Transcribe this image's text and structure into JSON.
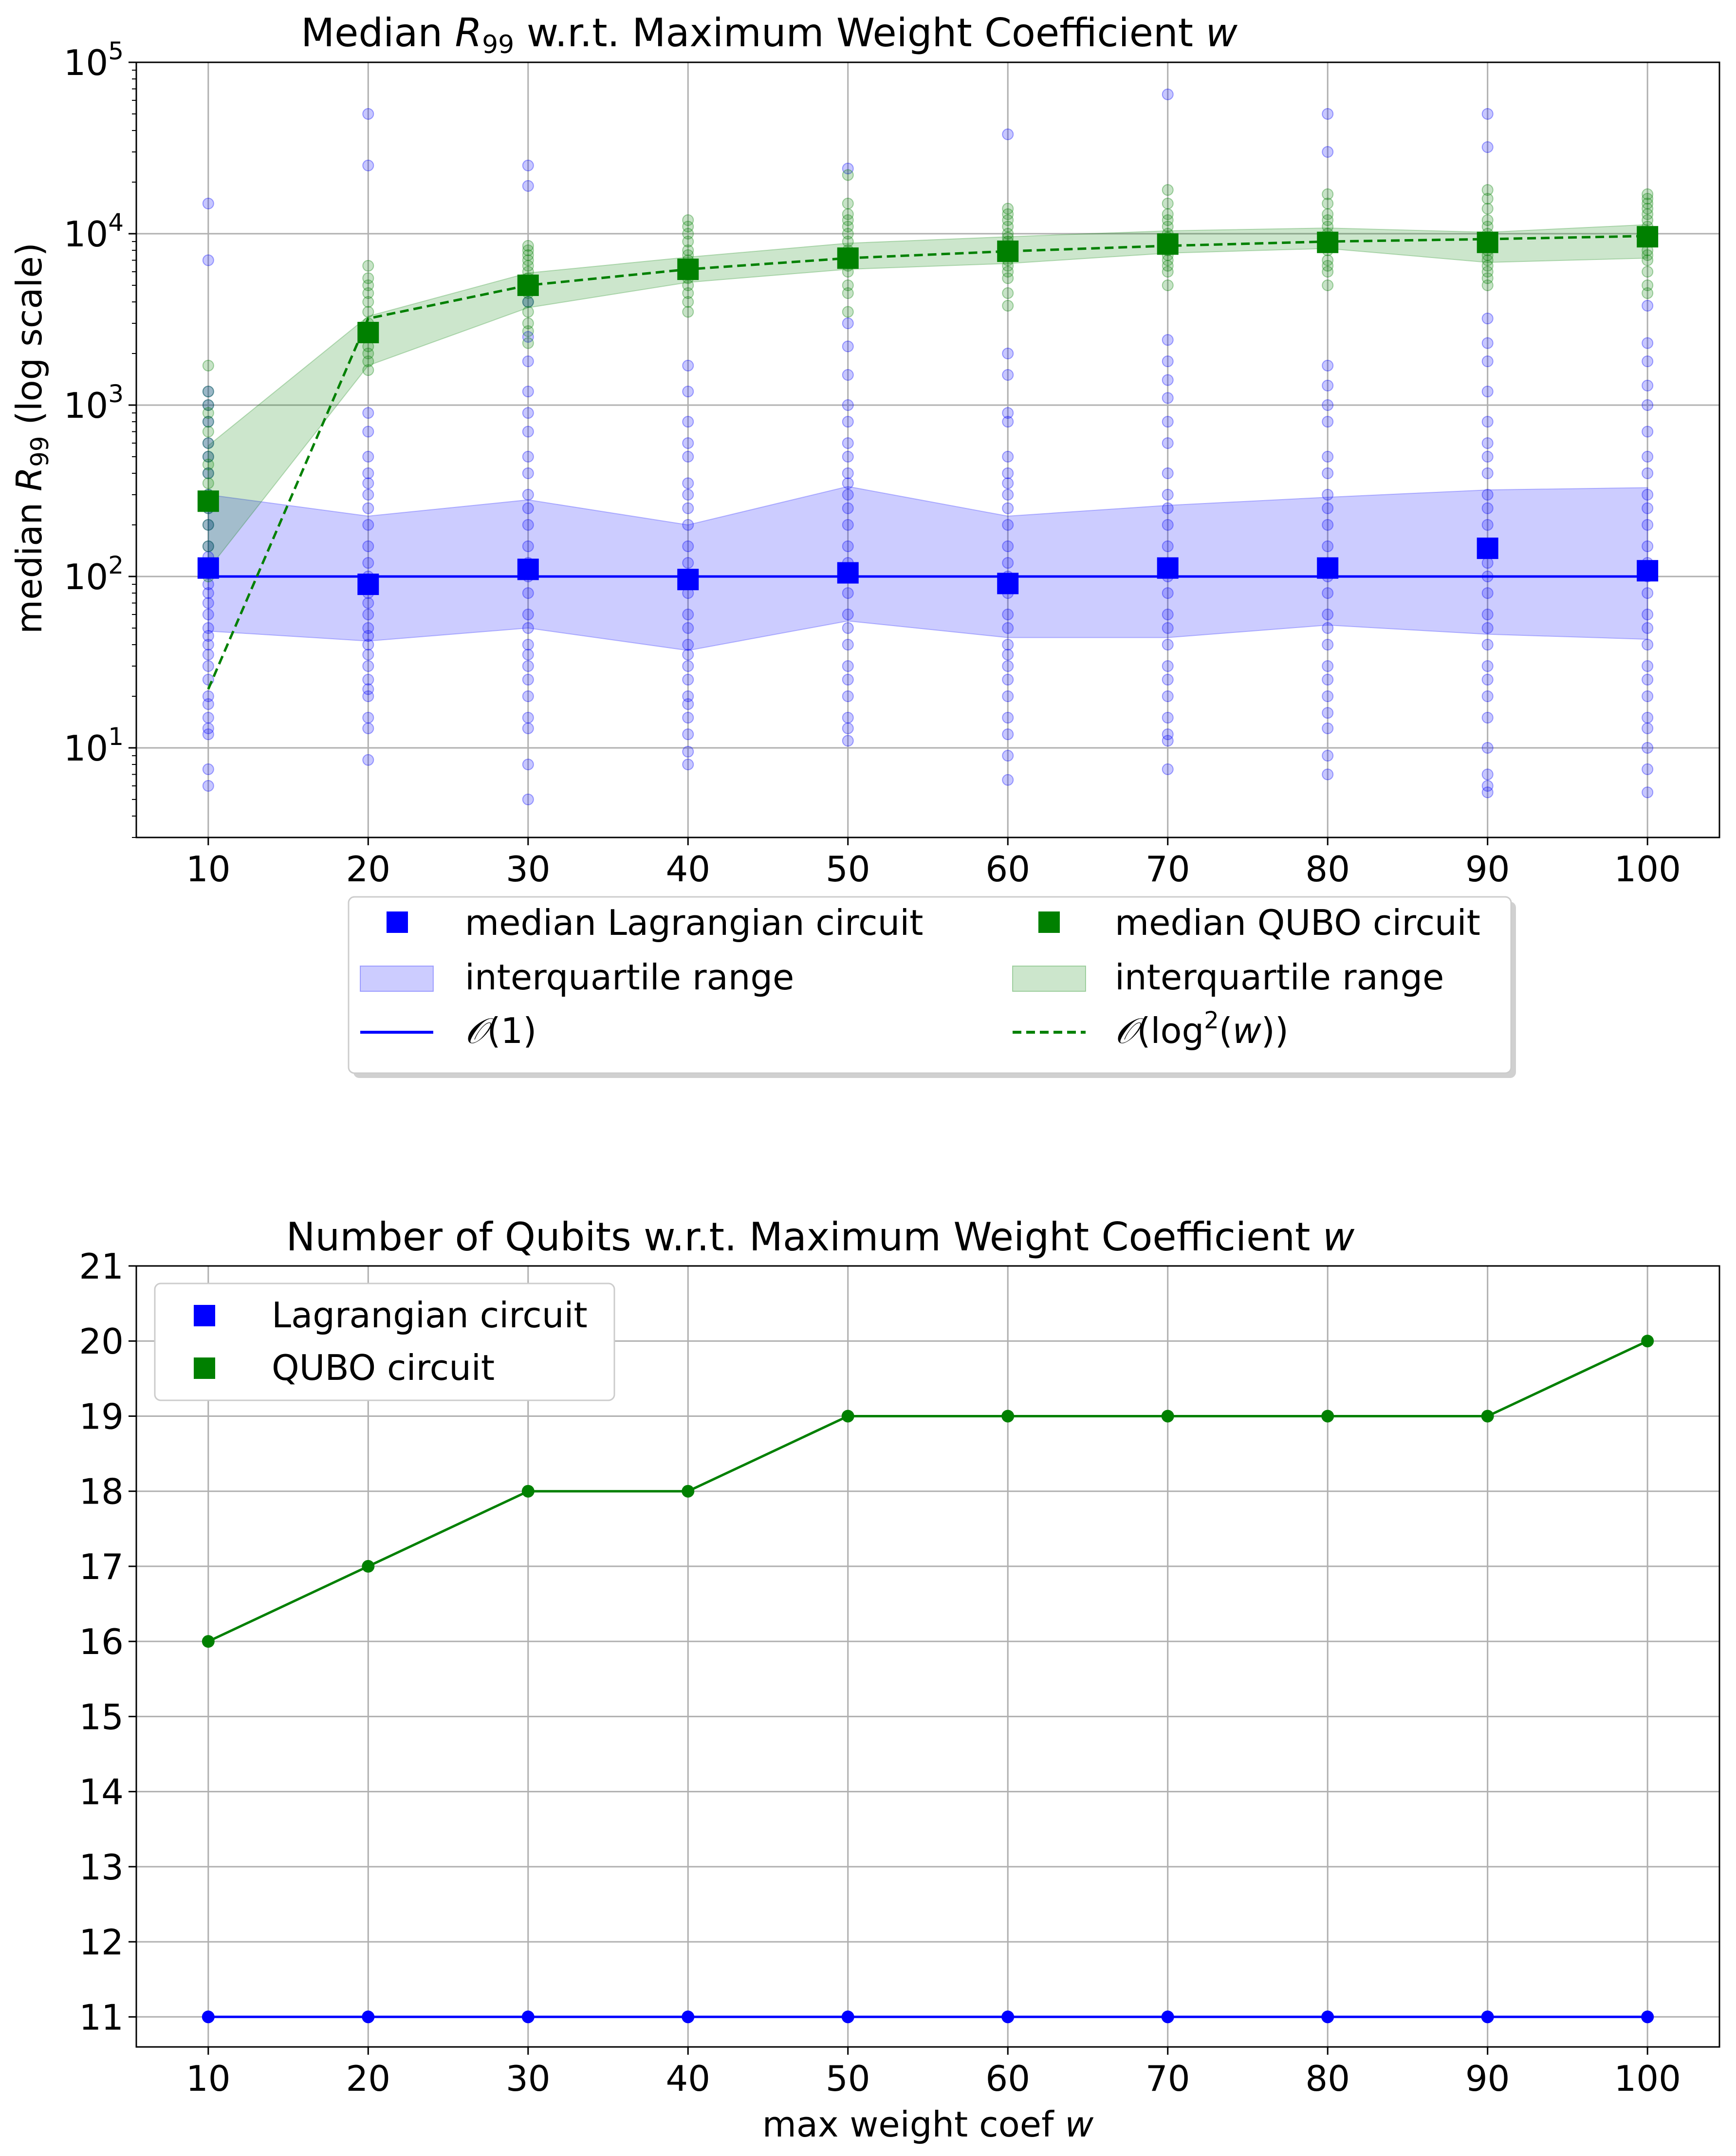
{
  "chart_data": [
    {
      "type": "scatter",
      "title": "Median  R99 w.r.t. Maximum Weight Coefficient w",
      "xlabel": "",
      "ylabel": "median R99 (log scale)",
      "yscale": "log",
      "ylim": [
        3,
        100000
      ],
      "xlim": [
        5.5,
        104.5
      ],
      "grid": true,
      "x": [
        10,
        20,
        30,
        40,
        50,
        60,
        70,
        80,
        90,
        100
      ],
      "ytick_labels": [
        "10",
        "10",
        "10",
        "10",
        "10"
      ],
      "ytick_exponents": [
        "1",
        "2",
        "3",
        "4",
        "5"
      ],
      "xtick_labels": [
        "10",
        "20",
        "30",
        "40",
        "50",
        "60",
        "70",
        "80",
        "90",
        "100"
      ],
      "legend_placement": "below plot, two columns",
      "series": [
        {
          "name": "median Lagrangian circuit",
          "color": "#0000ff",
          "median": [
            112,
            90,
            110,
            96,
            105,
            91,
            112,
            112,
            146,
            108
          ],
          "q1": [
            48,
            42,
            50,
            37,
            55,
            44,
            44,
            52,
            46,
            43
          ],
          "q3": [
            300,
            225,
            280,
            200,
            335,
            225,
            260,
            290,
            320,
            330
          ],
          "fit": {
            "name": "O(1)",
            "values": [
              100,
              100,
              100,
              100,
              100,
              100,
              100,
              100,
              100,
              100
            ]
          },
          "iqr_label": "interquartile range",
          "samples": [
            [
              15000,
              7000,
              1200,
              1000,
              800,
              600,
              500,
              400,
              300,
              250,
              200,
              150,
              130,
              110,
              90,
              80,
              70,
              60,
              50,
              45,
              40,
              35,
              30,
              25,
              20,
              18,
              15,
              13,
              12,
              7.5,
              6
            ],
            [
              50000,
              25000,
              900,
              700,
              500,
              400,
              350,
              300,
              250,
              200,
              150,
              120,
              100,
              80,
              70,
              60,
              50,
              45,
              40,
              35,
              30,
              25,
              22,
              20,
              15,
              13,
              8.5
            ],
            [
              25000,
              19000,
              4000,
              2500,
              1800,
              1200,
              900,
              700,
              500,
              400,
              300,
              250,
              200,
              150,
              120,
              100,
              80,
              60,
              50,
              40,
              35,
              30,
              25,
              20,
              15,
              13,
              8,
              5
            ],
            [
              1700,
              1200,
              800,
              600,
              500,
              350,
              300,
              250,
              200,
              150,
              120,
              100,
              80,
              60,
              50,
              40,
              35,
              30,
              25,
              20,
              18,
              15,
              12,
              9.5,
              8
            ],
            [
              24000,
              3000,
              2200,
              1500,
              1000,
              800,
              600,
              500,
              400,
              350,
              300,
              250,
              200,
              150,
              120,
              100,
              80,
              60,
              50,
              40,
              30,
              25,
              20,
              15,
              13,
              11
            ],
            [
              38000,
              2000,
              1500,
              900,
              800,
              500,
              400,
              350,
              300,
              250,
              200,
              150,
              120,
              100,
              80,
              60,
              50,
              40,
              35,
              30,
              25,
              20,
              15,
              12,
              9,
              6.5
            ],
            [
              65000,
              2400,
              1800,
              1400,
              1100,
              800,
              600,
              400,
              300,
              250,
              200,
              150,
              120,
              100,
              80,
              60,
              50,
              40,
              30,
              25,
              20,
              15,
              12,
              11,
              7.5
            ],
            [
              50000,
              30000,
              1700,
              1300,
              1000,
              800,
              500,
              400,
              300,
              250,
              200,
              150,
              120,
              100,
              80,
              60,
              50,
              40,
              30,
              25,
              20,
              16,
              13,
              9,
              7
            ],
            [
              50000,
              32000,
              3200,
              2300,
              1800,
              1200,
              800,
              600,
              500,
              400,
              300,
              250,
              200,
              150,
              120,
              100,
              80,
              60,
              50,
              40,
              30,
              25,
              20,
              15,
              10,
              7,
              6,
              5.5
            ],
            [
              3800,
              2300,
              1800,
              1300,
              1000,
              700,
              500,
              400,
              300,
              250,
              200,
              150,
              120,
              100,
              80,
              60,
              50,
              40,
              30,
              25,
              20,
              15,
              13,
              10,
              7.5,
              5.5
            ]
          ]
        },
        {
          "name": "median QUBO circuit",
          "color": "#008000",
          "median": [
            275,
            2650,
            5000,
            6200,
            7200,
            7900,
            8700,
            8900,
            8900,
            9600
          ],
          "q1": [
            110,
            1700,
            3700,
            5200,
            6200,
            6700,
            7700,
            8200,
            6800,
            7200
          ],
          "q3": [
            580,
            3300,
            5900,
            7300,
            8800,
            9600,
            10400,
            10800,
            10200,
            11300
          ],
          "fit": {
            "name": "O(log2(w))",
            "values": [
              22,
              3200,
              5000,
              6200,
              7200,
              7900,
              8500,
              9000,
              9300,
              9700
            ]
          },
          "iqr_label": "interquartile range",
          "samples": [
            [
              1700,
              1200,
              1000,
              900,
              800,
              700,
              600,
              500,
              450,
              400,
              350,
              300,
              250,
              200,
              150,
              100
            ],
            [
              6500,
              5500,
              5000,
              4500,
              4000,
              3500,
              3000,
              2700,
              2500,
              2200,
              2000,
              1800,
              1600
            ],
            [
              8500,
              8000,
              7500,
              7000,
              6500,
              6000,
              5500,
              5000,
              4500,
              4000,
              3500,
              3000,
              2700,
              2300
            ],
            [
              12000,
              11000,
              10000,
              9000,
              8000,
              7500,
              7000,
              6500,
              6000,
              5500,
              5000,
              4500,
              4000,
              3500
            ],
            [
              22000,
              15000,
              13000,
              12000,
              11000,
              10000,
              9000,
              8000,
              7000,
              6500,
              6000,
              5000,
              4500,
              3500
            ],
            [
              14000,
              13000,
              12000,
              11000,
              10000,
              9500,
              9000,
              8500,
              8000,
              7000,
              6500,
              6000,
              5500,
              4500,
              3800
            ],
            [
              18000,
              15000,
              13000,
              12000,
              11000,
              10000,
              9500,
              9000,
              8500,
              8000,
              7500,
              7000,
              6500,
              6000,
              5000
            ],
            [
              17000,
              15000,
              13000,
              12000,
              11000,
              10000,
              9500,
              9000,
              8500,
              8000,
              7000,
              6500,
              6000,
              5000
            ],
            [
              18000,
              16000,
              14000,
              12000,
              11000,
              10000,
              9000,
              8500,
              8000,
              7500,
              7000,
              6500,
              6000,
              5500,
              5000
            ],
            [
              17000,
              16000,
              15000,
              14000,
              13000,
              12000,
              11000,
              10000,
              9500,
              9000,
              8000,
              7500,
              7000,
              6000,
              5000,
              4500
            ]
          ]
        }
      ],
      "legend": {
        "entries": [
          {
            "label": "median Lagrangian circuit",
            "kind": "square",
            "color": "#0000ff"
          },
          {
            "label": "median QUBO circuit",
            "kind": "square",
            "color": "#008000"
          },
          {
            "label": "interquartile range",
            "kind": "patch",
            "color": "#0000ff"
          },
          {
            "label": "interquartile range",
            "kind": "patch",
            "color": "#008000"
          },
          {
            "label": "O(1)",
            "kind": "line",
            "color": "#0000ff"
          },
          {
            "label": "O(log2(w))",
            "kind": "dashed",
            "color": "#008000"
          }
        ]
      }
    },
    {
      "type": "line",
      "title": "Number of Qubits w.r.t. Maximum Weight Coefficient w",
      "xlabel": "max weight coef w",
      "ylabel": "",
      "ylim": [
        10.6,
        21
      ],
      "xlim": [
        5.5,
        104.5
      ],
      "grid": true,
      "x": [
        10,
        20,
        30,
        40,
        50,
        60,
        70,
        80,
        90,
        100
      ],
      "xtick_labels": [
        "10",
        "20",
        "30",
        "40",
        "50",
        "60",
        "70",
        "80",
        "90",
        "100"
      ],
      "ytick_labels": [
        "11",
        "12",
        "13",
        "14",
        "15",
        "16",
        "17",
        "18",
        "19",
        "20",
        "21"
      ],
      "legend_placement": "upper left",
      "series": [
        {
          "name": "Lagrangian circuit",
          "color": "#0000ff",
          "values": [
            11,
            11,
            11,
            11,
            11,
            11,
            11,
            11,
            11,
            11
          ]
        },
        {
          "name": "QUBO circuit",
          "color": "#008000",
          "values": [
            16,
            17,
            18,
            18,
            19,
            19,
            19,
            19,
            19,
            20
          ]
        }
      ]
    }
  ]
}
